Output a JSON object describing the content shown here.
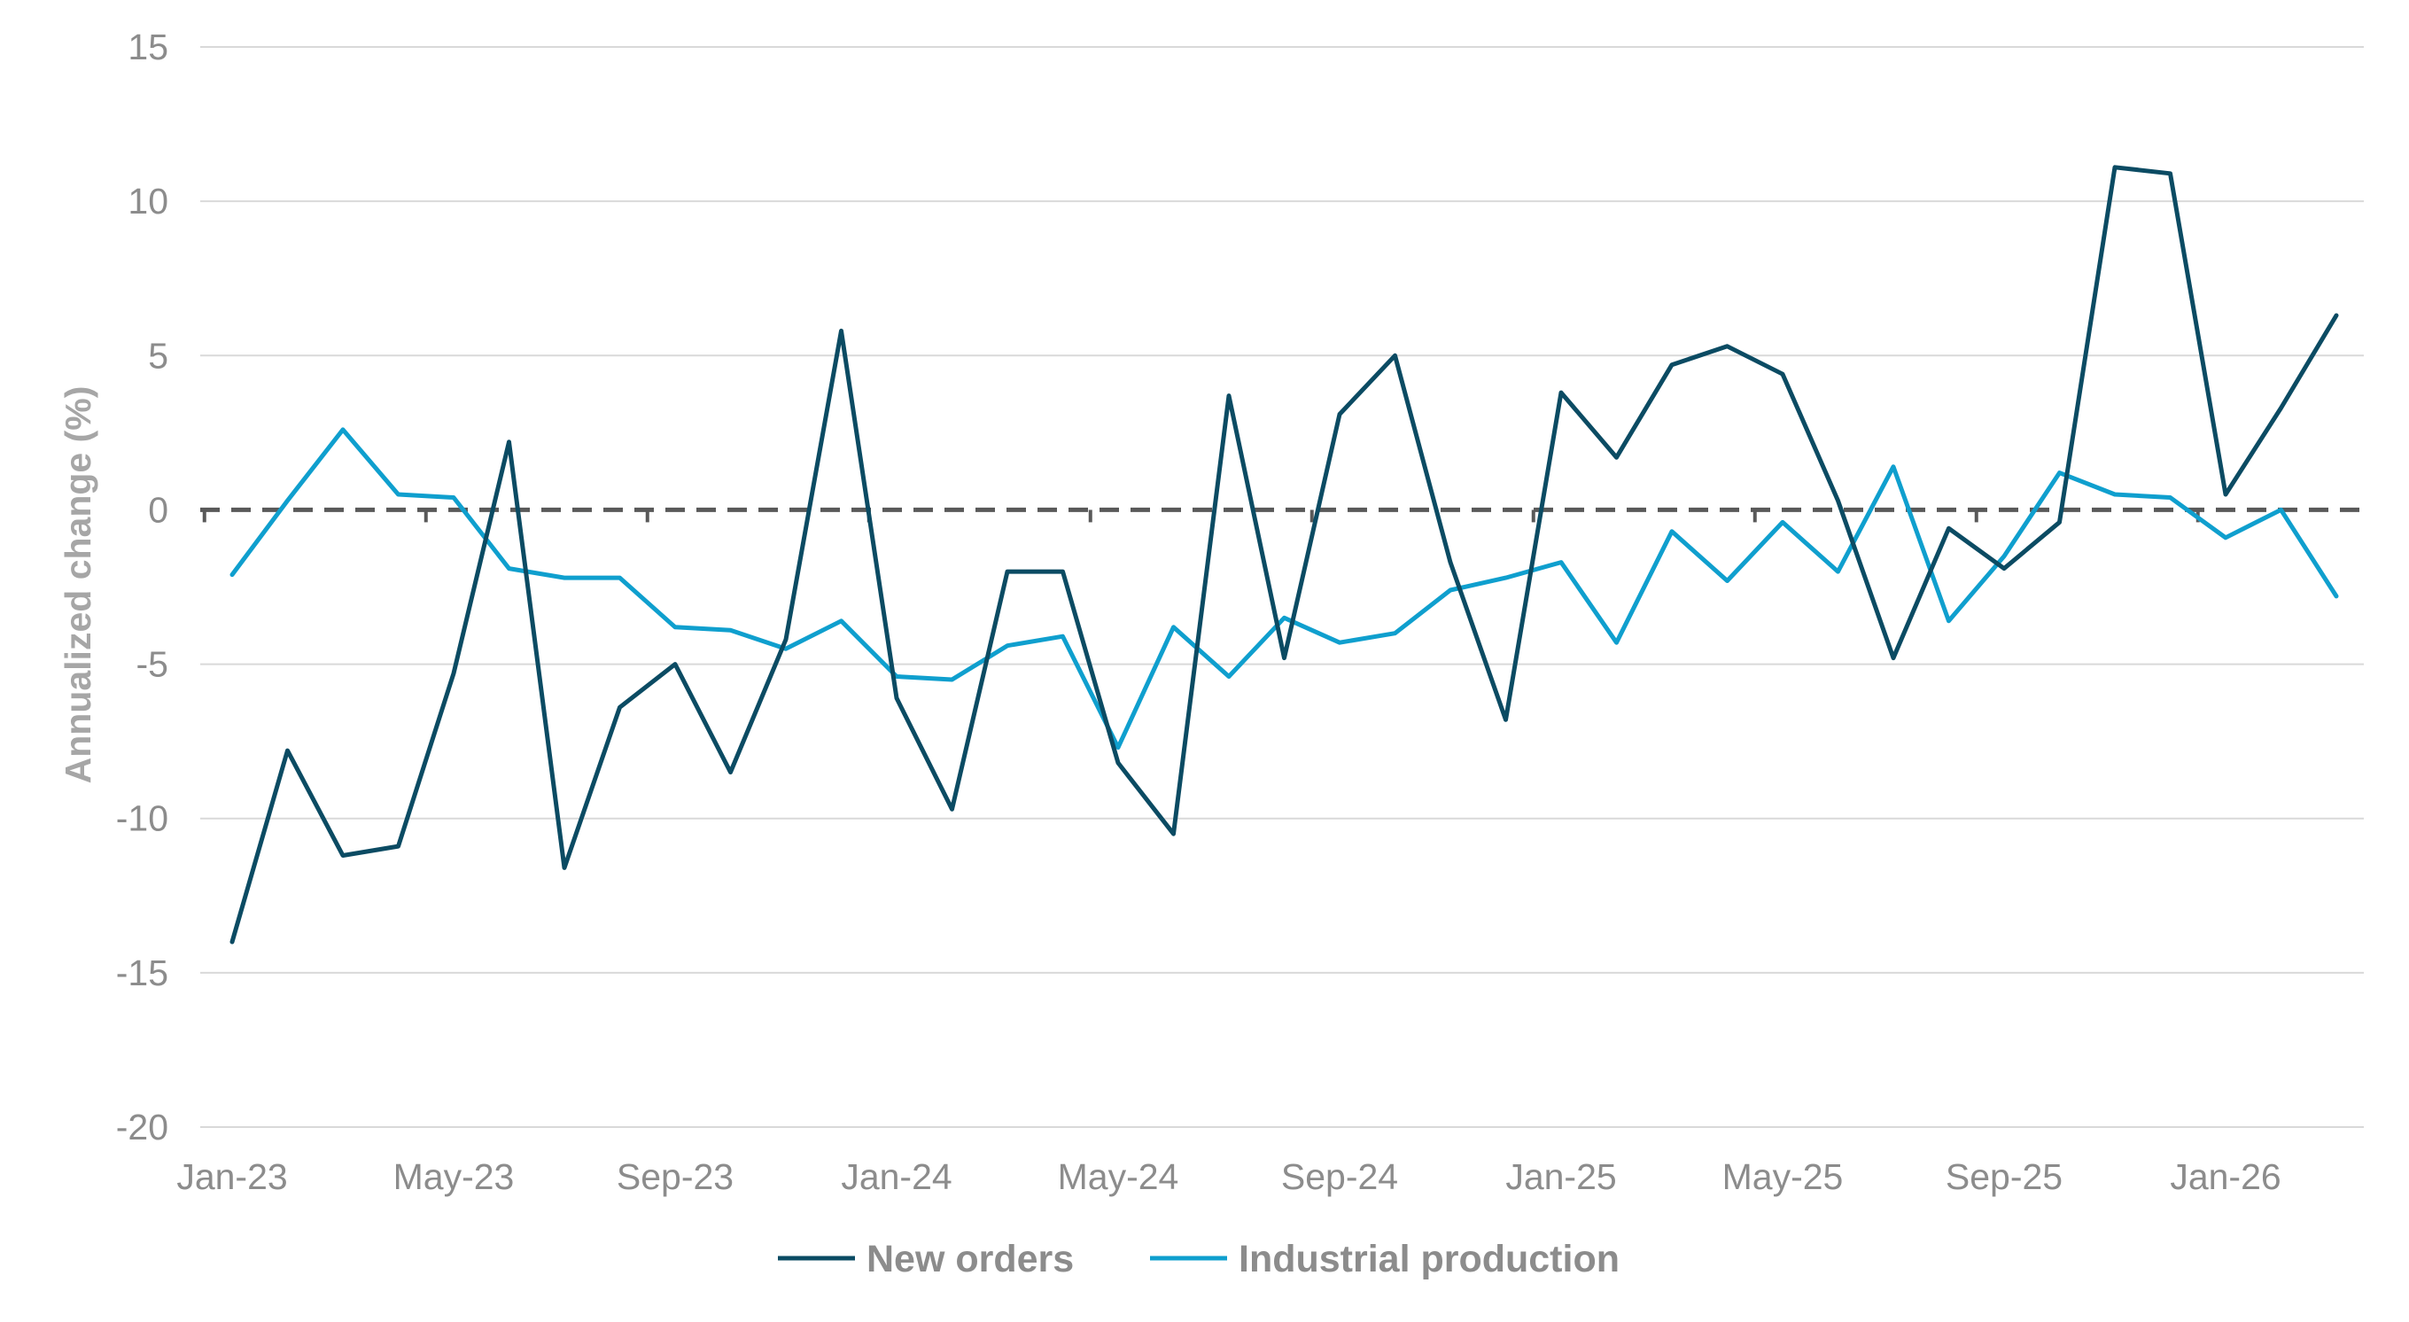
{
  "colors": {
    "new_orders": "#0b4b63",
    "industrial_production": "#0f9fce",
    "gridline": "#d9d9d9",
    "zero_line": "#595959",
    "text": "#8c8c8c"
  },
  "chart_data": {
    "type": "line",
    "title": "",
    "xlabel": "",
    "ylabel": "Annualized change (%)",
    "ylim": [
      -20,
      15
    ],
    "yticks": [
      "15",
      "10",
      "5",
      "0",
      "-5",
      "-10",
      "-15",
      "-20"
    ],
    "xtick_labels": [
      "Jan-23",
      "May-23",
      "Sep-23",
      "Jan-24",
      "May-24",
      "Sep-24",
      "Jan-25",
      "May-25",
      "Sep-25",
      "Jan-26"
    ],
    "x": [
      "Jan-23",
      "Feb-23",
      "Mar-23",
      "Apr-23",
      "May-23",
      "Jun-23",
      "Jul-23",
      "Aug-23",
      "Sep-23",
      "Oct-23",
      "Nov-23",
      "Dec-23",
      "Jan-24",
      "Feb-24",
      "Mar-24",
      "Apr-24",
      "May-24",
      "Jun-24",
      "Jul-24",
      "Aug-24",
      "Sep-24",
      "Oct-24",
      "Nov-24",
      "Dec-24",
      "Jan-25",
      "Feb-25",
      "Mar-25",
      "Apr-25",
      "May-25",
      "Jun-25",
      "Jul-25",
      "Aug-25",
      "Sep-25",
      "Oct-25",
      "Nov-25",
      "Dec-25",
      "Jan-26",
      "Feb-26",
      "Mar-26",
      "Apr-26"
    ],
    "reference_line": 0,
    "grid": true,
    "legend_position": "bottom",
    "series": [
      {
        "name": "New orders",
        "values": [
          -14.0,
          -7.8,
          -11.2,
          -10.9,
          -5.3,
          2.2,
          -11.6,
          -6.4,
          -5.0,
          -8.5,
          -4.2,
          5.8,
          -6.1,
          -9.7,
          -2.0,
          -2.0,
          -8.2,
          -10.5,
          3.7,
          -4.8,
          3.1,
          5.0,
          -1.7,
          -6.8,
          3.8,
          1.7,
          4.7,
          5.3,
          4.4,
          0.3,
          -4.8,
          -0.6,
          -1.9,
          -0.4,
          11.1,
          10.9,
          0.5,
          3.3,
          6.3,
          null
        ]
      },
      {
        "name": "Industrial production",
        "values": [
          -2.1,
          0.3,
          2.6,
          0.5,
          0.4,
          -1.9,
          -2.2,
          -2.2,
          -3.8,
          -3.9,
          -4.5,
          -3.6,
          -5.4,
          -5.5,
          -4.4,
          -4.1,
          -7.7,
          -3.8,
          -5.4,
          -3.5,
          -4.3,
          -4.0,
          -2.6,
          -2.2,
          -1.7,
          -4.3,
          -0.7,
          -2.3,
          -0.4,
          -2.0,
          1.4,
          -3.6,
          -1.5,
          1.2,
          0.5,
          0.4,
          -0.9,
          0.0,
          -2.8,
          null
        ]
      }
    ]
  }
}
